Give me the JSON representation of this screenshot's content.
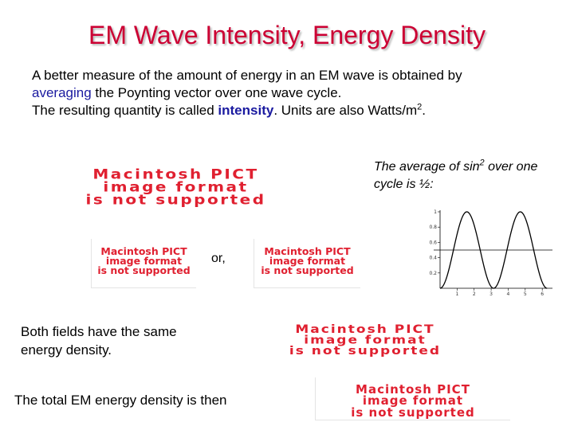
{
  "title": "EM Wave Intensity, Energy Density",
  "intro": {
    "line1": "A better measure of the amount of energy in an EM wave is obtained by",
    "averaging_word": "averaging",
    "line2_rest": " the Poynting vector over one wave cycle.",
    "line3_pre": "The resulting quantity is called ",
    "intensity_word": "intensity",
    "line3_post": ". Units are also Watts/m",
    "line3_sup": "2",
    "line3_end": "."
  },
  "avg_note": {
    "pre": "The average of sin",
    "sup": "2",
    "post": " over one cycle is ½:"
  },
  "or_label": "or,",
  "fields_note": "Both fields have the same energy density.",
  "total_note": "The total EM energy density is then",
  "pict_placeholder": {
    "line1": "Macintosh PICT",
    "line2": "image format",
    "line3": "is not supported"
  },
  "graph": {
    "y_ticks": [
      "1",
      "0.8",
      "0.6",
      "0.4",
      "0.2"
    ],
    "x_ticks": [
      "1",
      "2",
      "3",
      "4",
      "5",
      "6"
    ],
    "mean_line_y": 0.5,
    "curve": "sin^2"
  },
  "colors": {
    "title": "#cc0033",
    "highlight": "#1a1aa0",
    "pict_text": "#e02030"
  }
}
